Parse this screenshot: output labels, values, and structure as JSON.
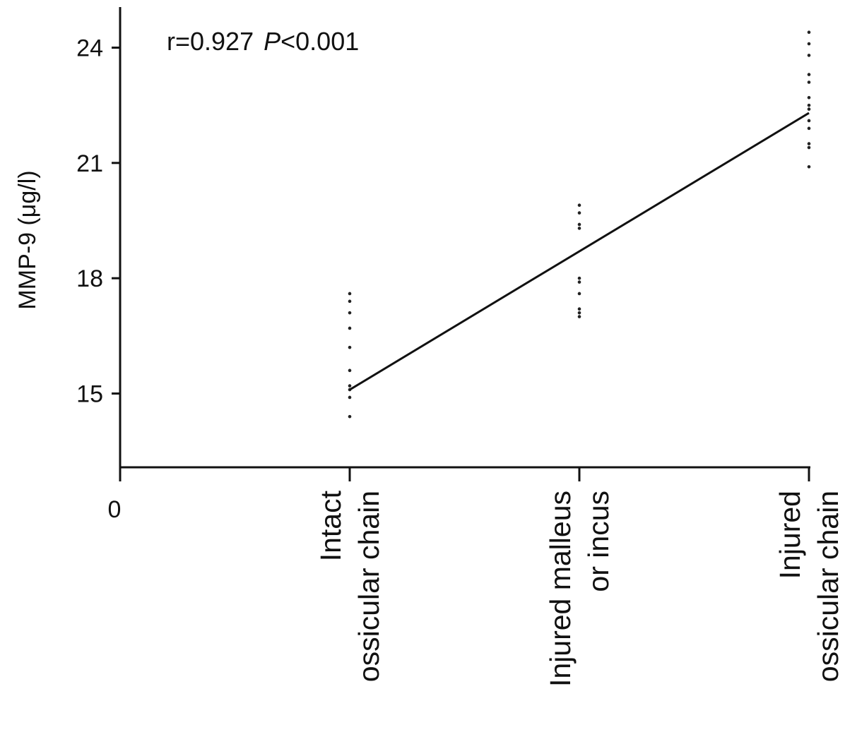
{
  "chart_data": {
    "type": "scatter",
    "title": "",
    "annotation": {
      "r_text": "r=0.927",
      "p_letter": "P",
      "p_text": "<0.001"
    },
    "ylabel": "MMP-9 (μg/l)",
    "xlabel": "",
    "ylim": [
      13.1,
      24.9
    ],
    "yticks": [
      15,
      18,
      21,
      24
    ],
    "x_origin_label": "0",
    "categories": [
      {
        "x": 1,
        "lines": [
          "Intact",
          "ossicular chain"
        ]
      },
      {
        "x": 2,
        "lines": [
          "Injured malleus",
          "or incus"
        ]
      },
      {
        "x": 3,
        "lines": [
          "Injured",
          "ossicular chain"
        ]
      }
    ],
    "xlim": [
      0,
      3
    ],
    "grid": false,
    "series": [
      {
        "x": 1,
        "values": [
          14.4,
          14.9,
          15.1,
          15.2,
          15.6,
          16.2,
          16.7,
          17.1,
          17.4,
          17.6
        ]
      },
      {
        "x": 2,
        "values": [
          17.0,
          17.1,
          17.2,
          17.6,
          17.9,
          18.0,
          19.3,
          19.4,
          19.7,
          19.9
        ]
      },
      {
        "x": 3,
        "values": [
          20.9,
          21.4,
          21.5,
          21.9,
          22.1,
          22.4,
          22.5,
          22.7,
          23.1,
          23.3,
          23.8,
          24.1,
          24.4
        ]
      }
    ],
    "regression_line": {
      "x": [
        1,
        3
      ],
      "y": [
        15.1,
        22.3
      ]
    }
  }
}
